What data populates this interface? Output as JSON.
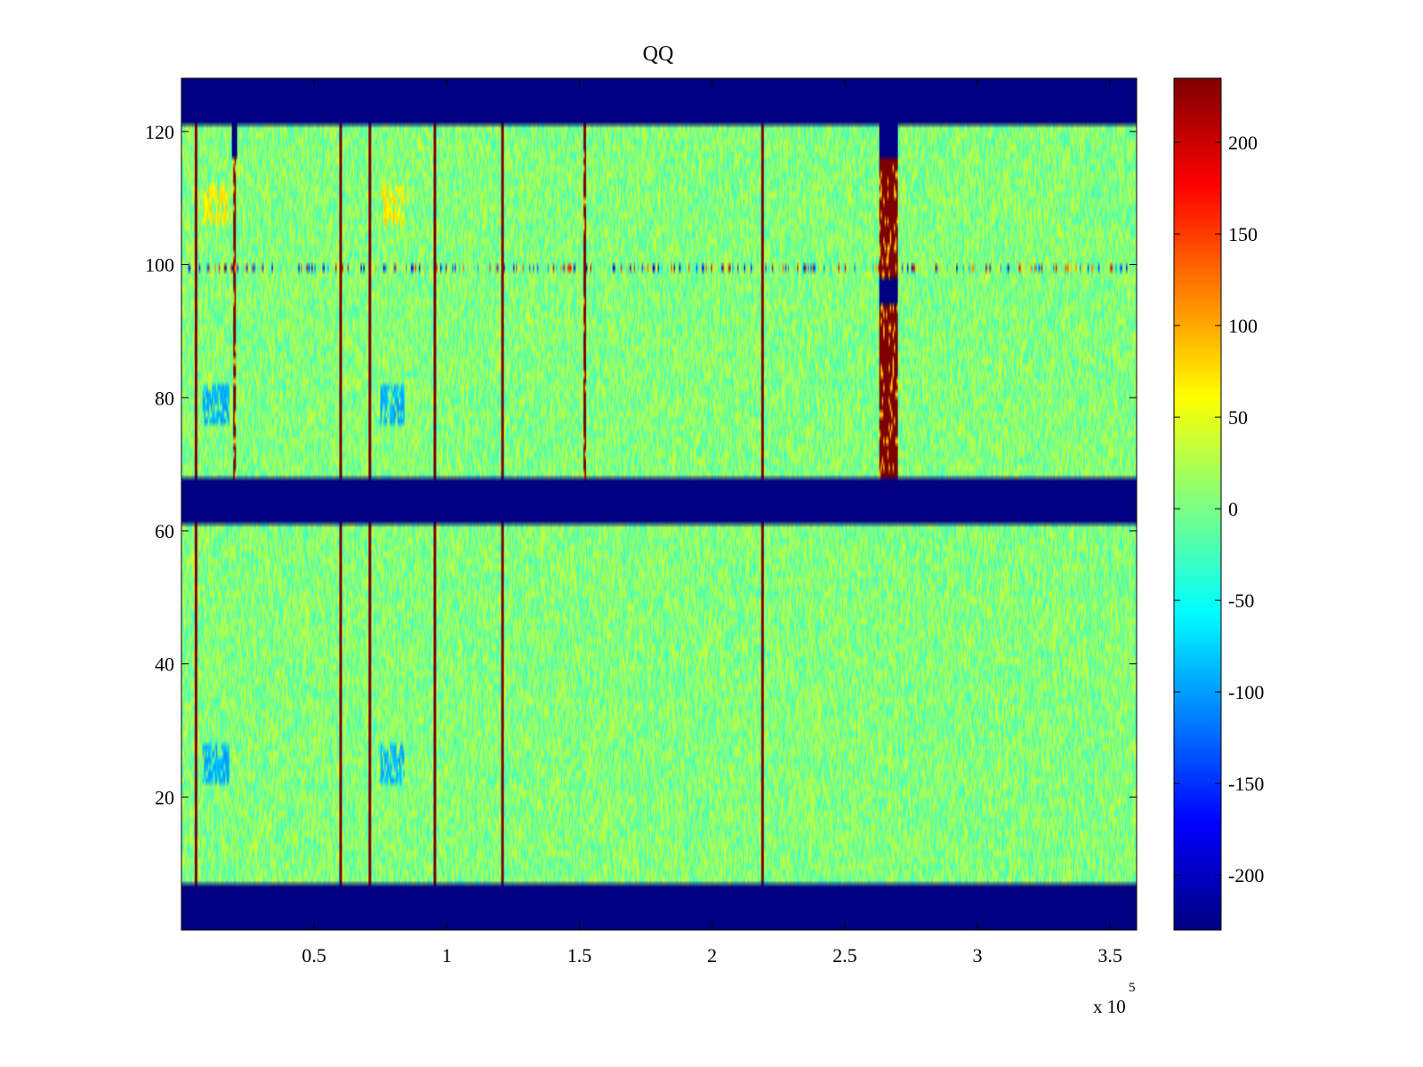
{
  "chart_data": {
    "type": "heatmap",
    "title": "QQ",
    "xlabel": "",
    "ylabel": "",
    "x_exponent_label": "x 10",
    "x_exponent_power": "5",
    "xlim": [
      0,
      3.6
    ],
    "ylim": [
      0,
      128
    ],
    "xticks": [
      0.5,
      1,
      1.5,
      2,
      2.5,
      3,
      3.5
    ],
    "xtick_labels": [
      "0.5",
      "1",
      "1.5",
      "2",
      "2.5",
      "3",
      "3.5"
    ],
    "yticks": [
      20,
      40,
      60,
      80,
      100,
      120
    ],
    "ytick_labels": [
      "20",
      "40",
      "60",
      "80",
      "100",
      "120"
    ],
    "colormap": "jet",
    "clim": [
      -230,
      235
    ],
    "colorbar_ticks": [
      200,
      150,
      100,
      50,
      0,
      -50,
      -100,
      -150,
      -200
    ],
    "colorbar_tick_labels": [
      "200",
      "150",
      "100",
      "50",
      "0",
      "-50",
      "-100",
      "-150",
      "-200"
    ],
    "background_value": -230,
    "masked_row_bands": [
      {
        "y_from": 0,
        "y_to": 7,
        "value": -230
      },
      {
        "y_from": 61,
        "y_to": 68,
        "value": -230
      },
      {
        "y_from": 121,
        "y_to": 128,
        "value": -230
      }
    ],
    "noise": {
      "mean": 5,
      "spread": 35
    },
    "hot_columns": [
      {
        "x": 0.055,
        "value": 235
      },
      {
        "x": 0.6,
        "value": 235
      },
      {
        "x": 0.71,
        "value": 235
      },
      {
        "x": 0.955,
        "value": 235
      },
      {
        "x": 1.21,
        "value": 235
      },
      {
        "x": 2.19,
        "value": 235
      }
    ],
    "partial_columns": [
      {
        "x": 0.2,
        "y_from": 68,
        "y_to": 121,
        "value": 235
      },
      {
        "x": 1.52,
        "y_from": 68,
        "y_to": 121,
        "value": 235
      },
      {
        "x_from": 2.63,
        "x_to": 2.7,
        "y_from": 68,
        "y_to": 121,
        "value": 235
      }
    ],
    "cold_cells": [
      {
        "x_from": 2.63,
        "x_to": 2.7,
        "y_from": 116,
        "y_to": 121,
        "value": -230
      },
      {
        "x_from": 2.63,
        "x_to": 2.7,
        "y_from": 94,
        "y_to": 98,
        "value": -230
      },
      {
        "x_from": 0.19,
        "x_to": 0.21,
        "y_from": 116,
        "y_to": 121,
        "value": -230
      }
    ],
    "highlight_row": {
      "y": 99.5,
      "value": 120
    },
    "blue_patches": [
      {
        "x_from": 0.08,
        "x_to": 0.18,
        "y_from": 76,
        "y_to": 82,
        "value": -90
      },
      {
        "x_from": 0.75,
        "x_to": 0.84,
        "y_from": 76,
        "y_to": 82,
        "value": -90
      },
      {
        "x_from": 0.08,
        "x_to": 0.18,
        "y_from": 22,
        "y_to": 28,
        "value": -90
      },
      {
        "x_from": 0.75,
        "x_to": 0.84,
        "y_from": 22,
        "y_to": 28,
        "value": -90
      }
    ],
    "warm_patches": [
      {
        "x_from": 0.08,
        "x_to": 0.18,
        "y_from": 106,
        "y_to": 112,
        "value": 70
      },
      {
        "x_from": 0.75,
        "x_to": 0.84,
        "y_from": 106,
        "y_to": 112,
        "value": 70
      }
    ]
  }
}
